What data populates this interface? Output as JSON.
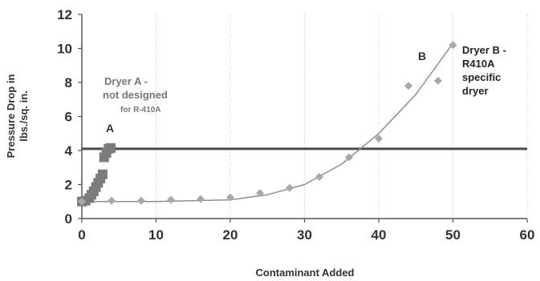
{
  "chart_data": {
    "type": "scatter",
    "title": "",
    "xlabel": "Contaminant Added",
    "ylabel": "Pressure Drop in lbs./sq. in.",
    "xlim": [
      0,
      60
    ],
    "ylim": [
      0,
      12
    ],
    "xticks": [
      "0",
      "10",
      "20",
      "30",
      "40",
      "50",
      "60"
    ],
    "yticks": [
      "0",
      "2",
      "4",
      "6",
      "8",
      "10",
      "12"
    ],
    "grid": "vertical dotted",
    "colors": {
      "series_a": "#7c7c7c",
      "series_b": "#a9a9a9",
      "trend": "#8f8f8f",
      "threshold": "#4b4b4b",
      "text": "#333333",
      "annotation_a": "#777777"
    },
    "series": [
      {
        "name": "A",
        "marker": "square",
        "points": [
          [
            0,
            1.0
          ],
          [
            0.5,
            1.05
          ],
          [
            1,
            1.2
          ],
          [
            1.3,
            1.4
          ],
          [
            1.6,
            1.6
          ],
          [
            1.9,
            1.85
          ],
          [
            2.2,
            2.1
          ],
          [
            2.5,
            2.35
          ],
          [
            2.8,
            2.6
          ],
          [
            3.0,
            3.6
          ],
          [
            3.3,
            3.85
          ],
          [
            3.6,
            4.1
          ],
          [
            3.9,
            4.15
          ]
        ]
      },
      {
        "name": "B",
        "marker": "diamond",
        "points": [
          [
            0,
            1.0
          ],
          [
            4,
            1.05
          ],
          [
            8,
            1.05
          ],
          [
            12,
            1.1
          ],
          [
            16,
            1.15
          ],
          [
            20,
            1.25
          ],
          [
            24,
            1.5
          ],
          [
            28,
            1.8
          ],
          [
            32,
            2.45
          ],
          [
            36,
            3.6
          ],
          [
            40,
            4.7
          ],
          [
            44,
            7.8
          ],
          [
            48,
            8.1
          ],
          [
            50,
            10.2
          ]
        ]
      }
    ],
    "trendline": {
      "points": [
        [
          0,
          1.0
        ],
        [
          10,
          1.0
        ],
        [
          20,
          1.1
        ],
        [
          25,
          1.4
        ],
        [
          30,
          2.0
        ],
        [
          35,
          3.2
        ],
        [
          40,
          5.0
        ],
        [
          45,
          7.3
        ],
        [
          50,
          10.3
        ]
      ]
    },
    "threshold": {
      "y": 4.1
    },
    "annotations": {
      "label_a": "A",
      "label_b": "B",
      "dryer_a_line1": "Dryer A -",
      "dryer_a_line2": "not designed",
      "dryer_a_line3": "for R-410A",
      "dryer_b_line1": "Dryer B -",
      "dryer_b_line2": "R410A",
      "dryer_b_line3": "specific",
      "dryer_b_line4": "dryer"
    }
  }
}
